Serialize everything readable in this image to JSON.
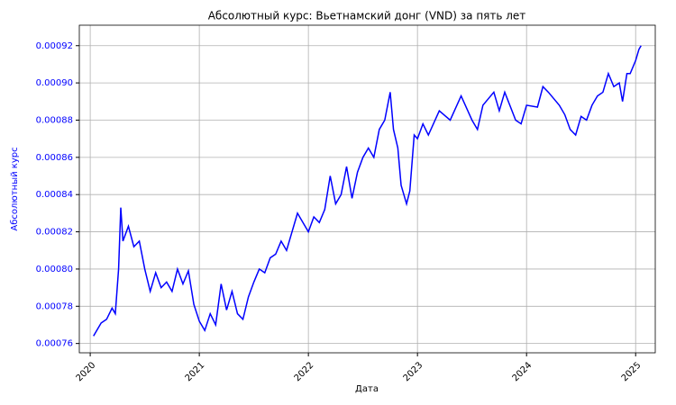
{
  "chart_data": {
    "type": "line",
    "title": "Абсолютный курс: Вьетнамский донг (VND) за пять лет",
    "xlabel": "Дата",
    "ylabel": "Абсолютный курс",
    "color": "#0000ff",
    "grid": true,
    "x": [
      2020.03,
      2020.1,
      2020.15,
      2020.2,
      2020.23,
      2020.26,
      2020.28,
      2020.3,
      2020.35,
      2020.4,
      2020.45,
      2020.5,
      2020.55,
      2020.6,
      2020.65,
      2020.7,
      2020.75,
      2020.8,
      2020.85,
      2020.9,
      2020.95,
      2021.0,
      2021.05,
      2021.1,
      2021.15,
      2021.2,
      2021.25,
      2021.3,
      2021.35,
      2021.4,
      2021.45,
      2021.5,
      2021.55,
      2021.6,
      2021.65,
      2021.7,
      2021.75,
      2021.8,
      2021.9,
      2021.95,
      2022.0,
      2022.05,
      2022.1,
      2022.15,
      2022.2,
      2022.25,
      2022.3,
      2022.35,
      2022.4,
      2022.45,
      2022.5,
      2022.55,
      2022.6,
      2022.65,
      2022.7,
      2022.75,
      2022.78,
      2022.82,
      2022.85,
      2022.9,
      2022.93,
      2022.97,
      2023.0,
      2023.05,
      2023.1,
      2023.2,
      2023.3,
      2023.4,
      2023.5,
      2023.55,
      2023.6,
      2023.7,
      2023.75,
      2023.8,
      2023.9,
      2023.95,
      2024.0,
      2024.1,
      2024.15,
      2024.2,
      2024.3,
      2024.35,
      2024.4,
      2024.45,
      2024.5,
      2024.55,
      2024.6,
      2024.65,
      2024.7,
      2024.75,
      2024.8,
      2024.85,
      2024.88,
      2024.92,
      2024.95,
      2025.0,
      2025.03,
      2025.05
    ],
    "values": [
      0.000764,
      0.000771,
      0.000773,
      0.000779,
      0.000776,
      0.0008,
      0.000833,
      0.000815,
      0.000823,
      0.000812,
      0.000815,
      0.0008,
      0.000788,
      0.000798,
      0.00079,
      0.000793,
      0.000788,
      0.0008,
      0.000792,
      0.000799,
      0.000781,
      0.000772,
      0.000767,
      0.000776,
      0.00077,
      0.000792,
      0.000778,
      0.000788,
      0.000776,
      0.000773,
      0.000785,
      0.000793,
      0.0008,
      0.000798,
      0.000806,
      0.000808,
      0.000815,
      0.00081,
      0.00083,
      0.000825,
      0.00082,
      0.000828,
      0.000825,
      0.000832,
      0.00085,
      0.000835,
      0.00084,
      0.000855,
      0.000838,
      0.000852,
      0.00086,
      0.000865,
      0.00086,
      0.000875,
      0.00088,
      0.000895,
      0.000875,
      0.000865,
      0.000845,
      0.000835,
      0.000842,
      0.000872,
      0.00087,
      0.000878,
      0.000872,
      0.000885,
      0.00088,
      0.000893,
      0.00088,
      0.000875,
      0.000888,
      0.000895,
      0.000885,
      0.000895,
      0.00088,
      0.000878,
      0.000888,
      0.000887,
      0.000898,
      0.000895,
      0.000888,
      0.000883,
      0.000875,
      0.000872,
      0.000882,
      0.00088,
      0.000888,
      0.000893,
      0.000895,
      0.000905,
      0.000898,
      0.0009,
      0.00089,
      0.000905,
      0.000905,
      0.000912,
      0.000918,
      0.00092
    ],
    "xlim": [
      2019.9,
      2025.18
    ],
    "xticks": [
      2020,
      2021,
      2022,
      2023,
      2024,
      2025
    ],
    "ylim": [
      0.000755,
      0.000931
    ],
    "yticks": [
      0.00076,
      0.00078,
      {
        "value": 0.0008,
        "label": "0.00080"
      },
      0.00082,
      0.00084,
      0.00086,
      0.00088,
      {
        "value": 0.0009,
        "label": "0.00090"
      },
      0.00092
    ]
  }
}
